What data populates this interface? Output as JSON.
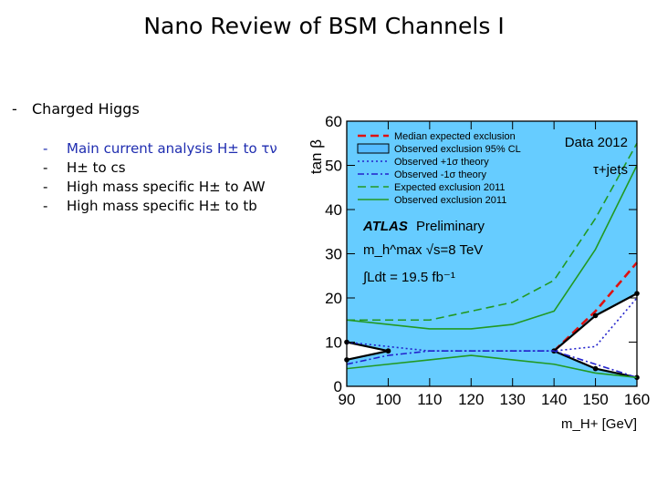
{
  "slide": {
    "title": "Nano Review of BSM Channels I",
    "section": {
      "bullet": "-",
      "label": "Charged Higgs"
    },
    "items": [
      {
        "bullet": "-",
        "text": "Main current analysis H± to τν",
        "highlight": true
      },
      {
        "bullet": "-",
        "text": "H± to cs",
        "highlight": false
      },
      {
        "bullet": "-",
        "text": "High mass specific H± to AW",
        "highlight": false
      },
      {
        "bullet": "-",
        "text": "High mass specific H± to tb",
        "highlight": false
      }
    ]
  },
  "chart_data": {
    "type": "line",
    "xlabel": "m_H+ [GeV]",
    "ylabel": "tan β",
    "xlim": [
      90,
      160
    ],
    "ylim": [
      0,
      60
    ],
    "xticks": [
      90,
      100,
      110,
      120,
      130,
      140,
      150,
      160
    ],
    "yticks": [
      0,
      10,
      20,
      30,
      40,
      50,
      60
    ],
    "colors": {
      "excluded_fill": "#66ccff",
      "median_expected": "#dd1111",
      "observed": "#000000",
      "sigma_band": "#2222cc",
      "expected_2011": "#229922",
      "observed_2011": "#229922"
    },
    "legend": {
      "placement": "top-left",
      "entries": [
        "Median expected exclusion",
        "Observed exclusion 95% CL",
        "Observed +1σ theory",
        "Observed -1σ theory",
        "Expected exclusion 2011",
        "Observed exclusion 2011"
      ]
    },
    "annotations": {
      "data_label": "Data 2012",
      "channel": "τ+jets",
      "experiment_bold": "ATLAS",
      "experiment_status": "Preliminary",
      "scenario": "m_h^max  √s=8 TeV",
      "luminosity": "∫Ldt = 19.5 fb⁻¹"
    },
    "series": [
      {
        "name": "Median expected exclusion",
        "style": "dashed",
        "x": [
          140,
          150,
          160
        ],
        "y": [
          8,
          17,
          28
        ]
      },
      {
        "name": "Observed exclusion 95% CL",
        "style": "solid",
        "x": [
          90,
          100,
          140,
          150,
          160
        ],
        "y": [
          10,
          8,
          8,
          16,
          21
        ]
      },
      {
        "name": "Observed exclusion 95% CL (lower)",
        "style": "solid",
        "x": [
          90,
          100,
          140,
          150,
          160
        ],
        "y": [
          6,
          8,
          8,
          4,
          2
        ]
      },
      {
        "name": "Observed +1σ theory",
        "style": "dotted",
        "x": [
          90,
          100,
          110,
          140,
          150,
          160
        ],
        "y": [
          10,
          9,
          8,
          8,
          9,
          20
        ]
      },
      {
        "name": "Observed -1σ theory",
        "style": "dashdot",
        "x": [
          90,
          100,
          110,
          140,
          150,
          160
        ],
        "y": [
          5,
          7,
          8,
          8,
          5,
          2
        ]
      },
      {
        "name": "Expected exclusion 2011",
        "style": "dashed",
        "x": [
          90,
          100,
          110,
          120,
          130,
          140,
          150,
          160
        ],
        "y": [
          15,
          15,
          15,
          17,
          19,
          24,
          38,
          55
        ]
      },
      {
        "name": "Observed exclusion 2011",
        "style": "solid",
        "x": [
          90,
          100,
          110,
          120,
          130,
          140,
          150,
          160
        ],
        "y": [
          15,
          14,
          13,
          13,
          14,
          17,
          31,
          50
        ]
      },
      {
        "name": "Observed exclusion 2011 (lower)",
        "style": "solid",
        "x": [
          90,
          100,
          110,
          120,
          130,
          140,
          150,
          160
        ],
        "y": [
          4,
          5,
          6,
          7,
          6,
          5,
          3,
          2
        ]
      }
    ]
  }
}
